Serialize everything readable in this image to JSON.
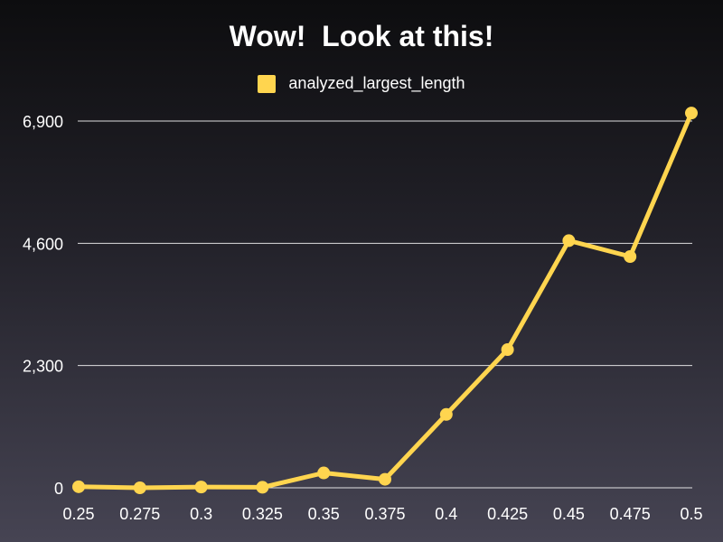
{
  "colors": {
    "series": "#ffd54f",
    "gridline": "#ffffff",
    "text": "#ffffff"
  },
  "chart_data": {
    "type": "line",
    "title": "Wow!  Look at this!",
    "xlabel": "",
    "ylabel": "",
    "legend_position": "top",
    "grid": true,
    "x": [
      0.25,
      0.275,
      0.3,
      0.325,
      0.35,
      0.375,
      0.4,
      0.425,
      0.45,
      0.475,
      0.5
    ],
    "x_tick_labels": [
      "0.25",
      "0.275",
      "0.3",
      "0.325",
      "0.35",
      "0.375",
      "0.4",
      "0.425",
      "0.45",
      "0.475",
      "0.5"
    ],
    "y_ticks": [
      0,
      2300,
      4600,
      6900
    ],
    "y_tick_labels": [
      "0",
      "2,300",
      "4,600",
      "6,900"
    ],
    "ylim": [
      0,
      6900
    ],
    "series": [
      {
        "name": "analyzed_largest_length",
        "color": "#ffd54f",
        "values": [
          20,
          0,
          15,
          10,
          280,
          160,
          1380,
          2600,
          4650,
          4350,
          7050
        ]
      }
    ]
  }
}
